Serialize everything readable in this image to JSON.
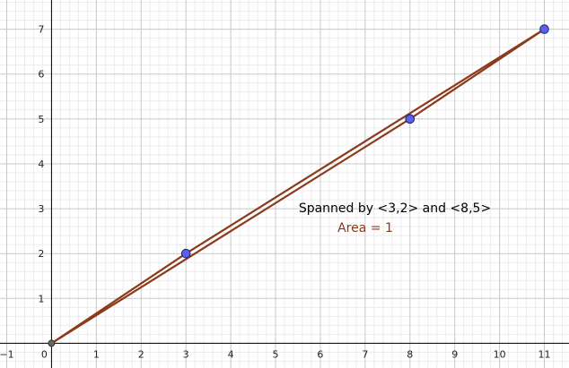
{
  "graph": {
    "x_ticks": [
      "−1",
      "0",
      "1",
      "2",
      "3",
      "4",
      "5",
      "6",
      "7",
      "8",
      "9",
      "10",
      "11"
    ],
    "y_ticks": [
      "1",
      "2",
      "3",
      "4",
      "5",
      "6",
      "7"
    ],
    "x_range": [
      -1.15,
      11.55
    ],
    "y_range": [
      -0.55,
      7.65
    ],
    "polygon_vertices": [
      [
        0,
        0
      ],
      [
        3,
        2
      ],
      [
        11,
        7
      ],
      [
        8,
        5
      ]
    ],
    "points": [
      [
        0,
        0
      ],
      [
        3,
        2
      ],
      [
        8,
        5
      ],
      [
        11,
        7
      ]
    ],
    "colors": {
      "polygon": "#8B3A1A",
      "point_fill": "#5A62E8",
      "point_stroke": "#1F1F7A",
      "caption": "#000000",
      "area_text": "#8B3A1A",
      "major_grid": "#c8c8c8",
      "minor_grid": "#ececec"
    }
  },
  "annotations": {
    "spanned_text": "Spanned by <3,2> and <8,5>",
    "area_text": "Area = 1"
  }
}
